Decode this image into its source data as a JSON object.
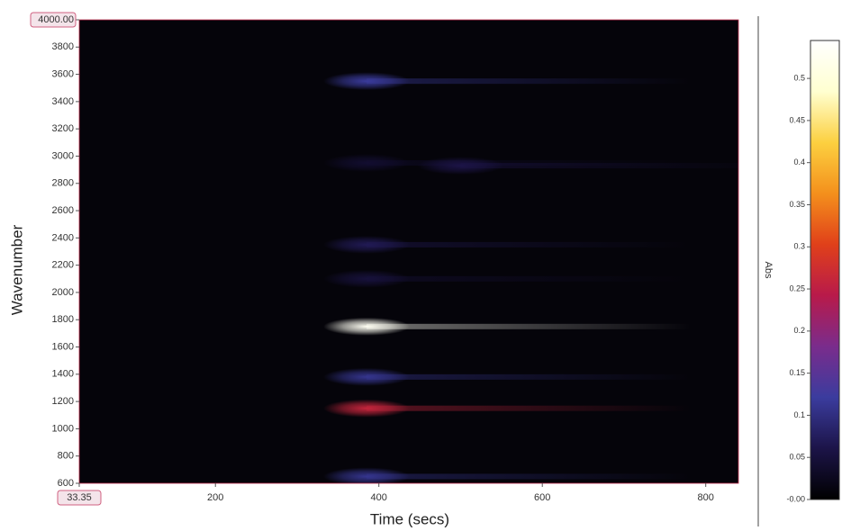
{
  "chart_data": {
    "type": "heatmap",
    "xlabel": "Time (secs)",
    "ylabel": "Wavenumber",
    "colorbar_label": "Abs",
    "xlim": [
      33.35,
      840
    ],
    "ylim": [
      600,
      4000
    ],
    "xticks": [
      {
        "value": 33.35,
        "label": "33.35"
      },
      200,
      400,
      600,
      800
    ],
    "yticks": [
      600,
      800,
      1000,
      1200,
      1400,
      1600,
      1800,
      2000,
      2200,
      2400,
      2600,
      2800,
      3000,
      3200,
      3400,
      3600,
      3800,
      {
        "value": 4000,
        "label": "4000.00"
      }
    ],
    "clim": [
      0,
      0.545
    ],
    "cticks": [
      {
        "value": 0,
        "label": "-0.00"
      },
      0.05,
      0.1,
      0.15,
      0.2,
      0.25,
      0.3,
      0.35,
      0.4,
      0.45,
      0.5
    ],
    "colormap": [
      "#000000",
      "#1c1448",
      "#3b3c9e",
      "#7a2c8c",
      "#b81a4a",
      "#e0401a",
      "#f4901c",
      "#fcd040",
      "#ffffd0",
      "#ffffff"
    ],
    "background": "#05040a",
    "x": [
      385,
      385,
      500,
      385,
      385,
      385,
      385,
      385,
      385
    ],
    "y": [
      3550,
      2950,
      2930,
      2350,
      2100,
      1750,
      1380,
      1150,
      650
    ],
    "values": [
      0.12,
      0.04,
      0.06,
      0.07,
      0.05,
      0.53,
      0.11,
      0.26,
      0.11
    ]
  }
}
